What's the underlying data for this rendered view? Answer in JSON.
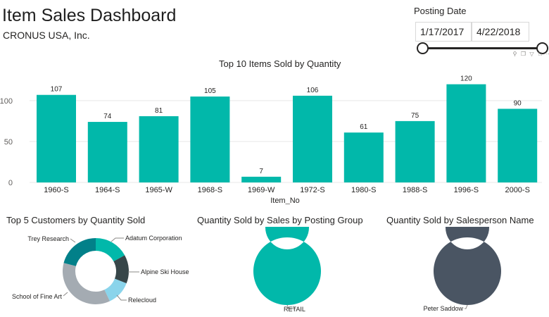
{
  "header": {
    "title": "Item Sales Dashboard",
    "company": "CRONUS USA, Inc."
  },
  "slicer": {
    "label": "Posting Date",
    "start_date": "1/17/2017",
    "end_date": "4/22/2018"
  },
  "visual_tools": [
    "pin-icon",
    "copy-icon",
    "filter-icon",
    "focus-mode-icon",
    "more-options-icon"
  ],
  "colors": {
    "bar": "#01B8AA",
    "customers": [
      "#01B8AA",
      "#374649",
      "#8AD4EB",
      "#A4ABB2",
      "#028089"
    ],
    "retail": "#01B8AA",
    "salesperson": "#4A5563"
  },
  "chart_data": [
    {
      "type": "bar",
      "title": "Top 10 Items Sold by Quantity",
      "xlabel": "Item_No",
      "ylabel": "",
      "categories": [
        "1960-S",
        "1964-S",
        "1965-W",
        "1968-S",
        "1969-W",
        "1972-S",
        "1980-S",
        "1988-S",
        "1996-S",
        "2000-S"
      ],
      "values": [
        107,
        74,
        81,
        105,
        7,
        106,
        61,
        75,
        120,
        90
      ],
      "ylim": [
        0,
        130
      ],
      "yticks": [
        0,
        50,
        100
      ],
      "grid": true,
      "data_labels": true
    },
    {
      "type": "pie",
      "title": "Top 5 Customers by Quantity Sold",
      "donut": true,
      "labels": [
        "Adatum Corporation",
        "Alpine Ski House",
        "Relecloud",
        "School of Fine Art",
        "Trey Research"
      ],
      "values": [
        17,
        14,
        12,
        36,
        21
      ]
    },
    {
      "type": "pie",
      "title": "Quantity Sold by Sales by Posting Group",
      "donut": true,
      "labels": [
        "RETAIL"
      ],
      "values": [
        100
      ]
    },
    {
      "type": "pie",
      "title": "Quantity Sold by Salesperson Name",
      "donut": true,
      "labels": [
        "Peter Saddow"
      ],
      "values": [
        100
      ]
    }
  ]
}
